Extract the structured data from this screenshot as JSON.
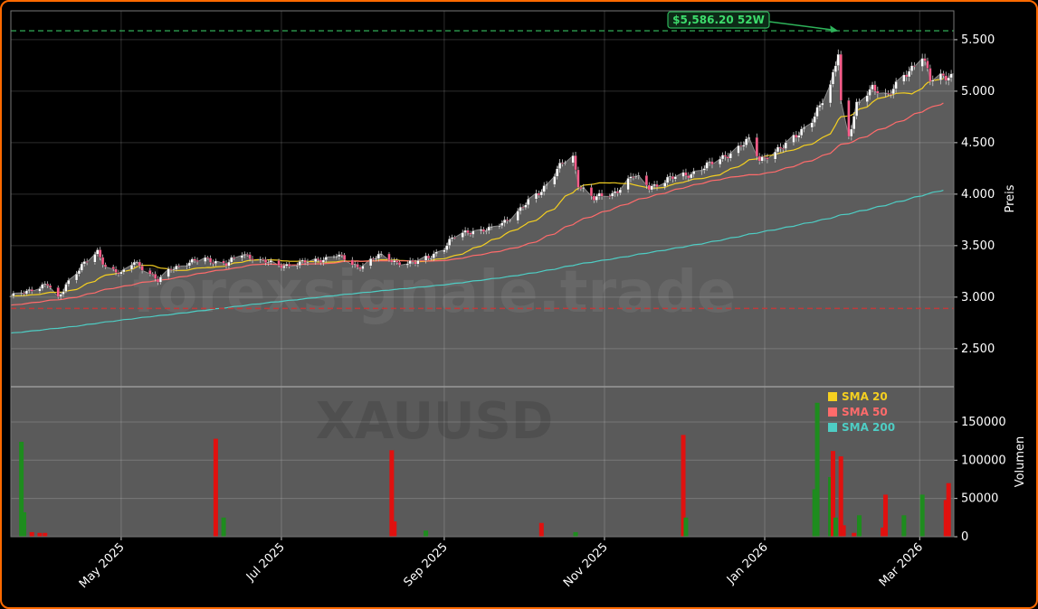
{
  "chart_data": {
    "type": "candlestick",
    "symbol_watermark": "XAUUSD",
    "site_watermark": "forexsignale.trade",
    "price_axis": {
      "label": "Preis",
      "ylim": [
        2130,
        5780
      ],
      "ticks": [
        2500,
        3000,
        3500,
        4000,
        4500,
        5000,
        5500
      ],
      "tick_labels": [
        "2.500",
        "3.000",
        "3.500",
        "4.000",
        "4.500",
        "5.000",
        "5.500"
      ]
    },
    "volume_axis": {
      "label": "Volumen",
      "ylim": [
        0,
        196000
      ],
      "ticks": [
        0,
        50000,
        100000,
        150000
      ],
      "tick_labels": [
        "0",
        "50000",
        "100000",
        "150000"
      ]
    },
    "x_axis": {
      "start": "2025-03-20",
      "end": "2026-03-14",
      "ticks": [
        "2025-05-01",
        "2025-07-01",
        "2025-09-01",
        "2025-11-01",
        "2026-01-01",
        "2026-03-01"
      ],
      "tick_labels": [
        "May 2025",
        "Jul 2025",
        "Sep 2025",
        "Nov 2025",
        "Jan 2026",
        "Mar 2026"
      ]
    },
    "hlines": [
      {
        "value": 5586.2,
        "color": "#2e9e4f",
        "style": "dashed"
      },
      {
        "value": 2890,
        "color": "#c03a3a",
        "style": "dashed"
      }
    ],
    "annotation": {
      "text": "$5,586.20 52W",
      "date": "2026-01-29",
      "value": 5586.2
    },
    "legend": {
      "placement": "top-right of volume panel",
      "entries": [
        {
          "label": "SMA 20",
          "color": "#f5d020"
        },
        {
          "label": "SMA 50",
          "color": "#ff6b6b"
        },
        {
          "label": "SMA 200",
          "color": "#4ecdc4"
        }
      ]
    },
    "price_path": [
      [
        "2025-03-20",
        3000
      ],
      [
        "2025-03-28",
        3080
      ],
      [
        "2025-04-03",
        3120
      ],
      [
        "2025-04-07",
        2980
      ],
      [
        "2025-04-10",
        3130
      ],
      [
        "2025-04-16",
        3300
      ],
      [
        "2025-04-22",
        3440
      ],
      [
        "2025-04-25",
        3300
      ],
      [
        "2025-05-01",
        3220
      ],
      [
        "2025-05-06",
        3350
      ],
      [
        "2025-05-12",
        3230
      ],
      [
        "2025-05-15",
        3150
      ],
      [
        "2025-05-20",
        3280
      ],
      [
        "2025-05-26",
        3330
      ],
      [
        "2025-06-02",
        3370
      ],
      [
        "2025-06-10",
        3320
      ],
      [
        "2025-06-16",
        3420
      ],
      [
        "2025-06-23",
        3360
      ],
      [
        "2025-06-30",
        3300
      ],
      [
        "2025-07-07",
        3330
      ],
      [
        "2025-07-14",
        3350
      ],
      [
        "2025-07-22",
        3410
      ],
      [
        "2025-07-30",
        3290
      ],
      [
        "2025-08-07",
        3400
      ],
      [
        "2025-08-14",
        3340
      ],
      [
        "2025-08-21",
        3330
      ],
      [
        "2025-08-26",
        3390
      ],
      [
        "2025-09-01",
        3480
      ],
      [
        "2025-09-05",
        3590
      ],
      [
        "2025-09-10",
        3640
      ],
      [
        "2025-09-18",
        3650
      ],
      [
        "2025-09-24",
        3740
      ],
      [
        "2025-09-30",
        3850
      ],
      [
        "2025-10-08",
        4040
      ],
      [
        "2025-10-16",
        4300
      ],
      [
        "2025-10-20",
        4350
      ],
      [
        "2025-10-22",
        4100
      ],
      [
        "2025-10-28",
        3960
      ],
      [
        "2025-11-04",
        4000
      ],
      [
        "2025-11-12",
        4180
      ],
      [
        "2025-11-18",
        4070
      ],
      [
        "2025-11-26",
        4150
      ],
      [
        "2025-12-04",
        4200
      ],
      [
        "2025-12-12",
        4300
      ],
      [
        "2025-12-22",
        4450
      ],
      [
        "2025-12-26",
        4520
      ],
      [
        "2025-12-30",
        4340
      ],
      [
        "2026-01-08",
        4450
      ],
      [
        "2026-01-14",
        4600
      ],
      [
        "2026-01-20",
        4750
      ],
      [
        "2026-01-26",
        5050
      ],
      [
        "2026-01-29",
        5400
      ],
      [
        "2026-01-30",
        4900
      ],
      [
        "2026-02-02",
        4550
      ],
      [
        "2026-02-05",
        4850
      ],
      [
        "2026-02-11",
        5050
      ],
      [
        "2026-02-17",
        4950
      ],
      [
        "2026-02-23",
        5150
      ],
      [
        "2026-03-02",
        5350
      ],
      [
        "2026-03-05",
        5100
      ],
      [
        "2026-03-10",
        5150
      ],
      [
        "2026-03-13",
        5150
      ]
    ],
    "shaded_area_until": "2026-03-14",
    "volume_spikes": [
      [
        "2025-03-24",
        124000,
        "up"
      ],
      [
        "2025-03-25",
        32000,
        "up"
      ],
      [
        "2025-03-28",
        6000,
        "down"
      ],
      [
        "2025-03-31",
        5000,
        "down"
      ],
      [
        "2025-04-02",
        5000,
        "down"
      ],
      [
        "2025-06-06",
        128000,
        "down"
      ],
      [
        "2025-06-09",
        25000,
        "up"
      ],
      [
        "2025-08-12",
        113000,
        "down"
      ],
      [
        "2025-08-13",
        20000,
        "down"
      ],
      [
        "2025-08-25",
        8000,
        "up"
      ],
      [
        "2025-10-08",
        18000,
        "down"
      ],
      [
        "2025-10-21",
        6000,
        "up"
      ],
      [
        "2025-12-01",
        133000,
        "down"
      ],
      [
        "2025-12-02",
        25000,
        "up"
      ],
      [
        "2026-01-20",
        62000,
        "up"
      ],
      [
        "2026-01-21",
        175000,
        "up"
      ],
      [
        "2026-01-26",
        78000,
        "up"
      ],
      [
        "2026-01-27",
        112000,
        "down"
      ],
      [
        "2026-01-28",
        25000,
        "up"
      ],
      [
        "2026-01-30",
        105000,
        "down"
      ],
      [
        "2026-01-31",
        15000,
        "down"
      ],
      [
        "2026-02-04",
        5000,
        "down"
      ],
      [
        "2026-02-06",
        28000,
        "up"
      ],
      [
        "2026-02-15",
        12000,
        "down"
      ],
      [
        "2026-02-16",
        55000,
        "down"
      ],
      [
        "2026-02-23",
        28000,
        "up"
      ],
      [
        "2026-03-02",
        55000,
        "up"
      ],
      [
        "2026-03-11",
        48000,
        "down"
      ],
      [
        "2026-03-12",
        70000,
        "down"
      ]
    ]
  }
}
